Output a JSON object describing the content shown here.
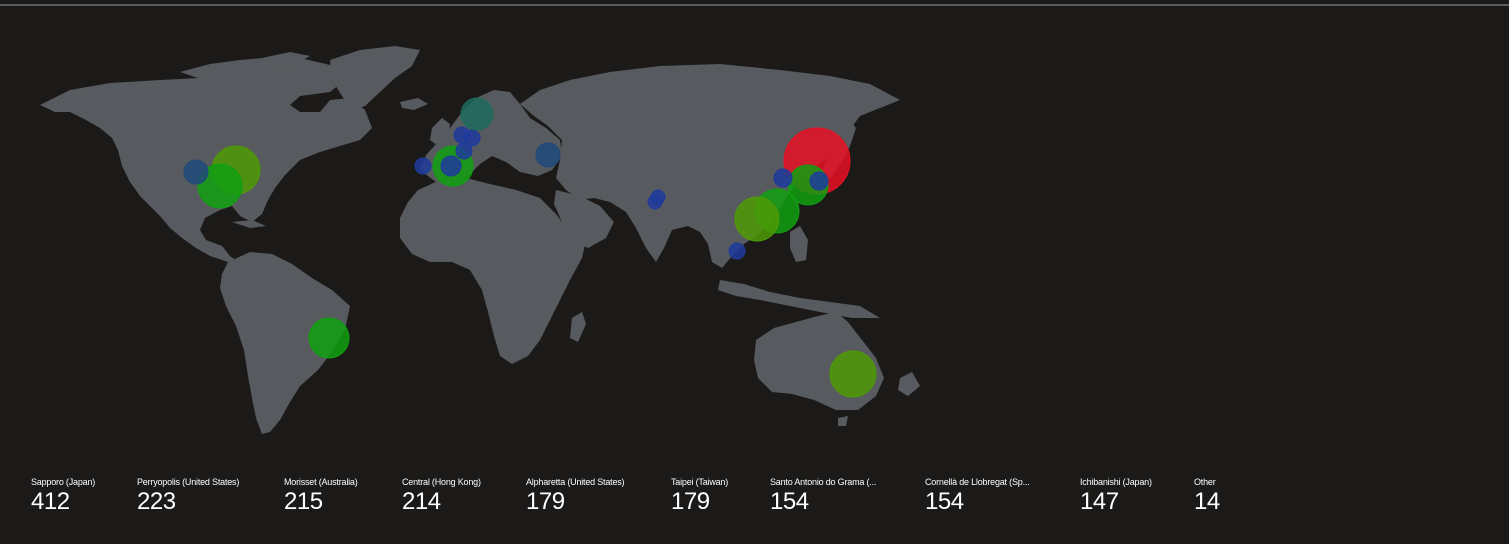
{
  "map": {
    "markers": [
      {
        "id": "sapporo",
        "color": "#e81123",
        "level": "highest"
      },
      {
        "id": "japan-honshu",
        "color": "#10a010",
        "level": "medium"
      },
      {
        "id": "tokyo-area",
        "color": "#1f3b9c",
        "level": "low"
      },
      {
        "id": "taiwan",
        "color": "#10a010",
        "level": "medium"
      },
      {
        "id": "hong-kong",
        "color": "#4e9a06",
        "level": "medium"
      },
      {
        "id": "korea",
        "color": "#1f3b9c",
        "level": "low"
      },
      {
        "id": "vietnam",
        "color": "#1f3b9c",
        "level": "low"
      },
      {
        "id": "india-1",
        "color": "#1f3b9c",
        "level": "low"
      },
      {
        "id": "india-2",
        "color": "#1f3b9c",
        "level": "low"
      },
      {
        "id": "australia",
        "color": "#4e9a06",
        "level": "medium"
      },
      {
        "id": "us-east-large",
        "color": "#4e9a06",
        "level": "medium"
      },
      {
        "id": "us-southeast",
        "color": "#10a010",
        "level": "medium"
      },
      {
        "id": "us-central",
        "color": "#1e4a7a",
        "level": "low"
      },
      {
        "id": "brazil",
        "color": "#10a010",
        "level": "medium"
      },
      {
        "id": "spain",
        "color": "#10a010",
        "level": "medium"
      },
      {
        "id": "portugal",
        "color": "#1f3b9c",
        "level": "low"
      },
      {
        "id": "spain-inner",
        "color": "#1f3b9c",
        "level": "low"
      },
      {
        "id": "france",
        "color": "#1f3b9c",
        "level": "low"
      },
      {
        "id": "belgium",
        "color": "#1f3b9c",
        "level": "low"
      },
      {
        "id": "netherlands",
        "color": "#1f3b9c",
        "level": "low"
      },
      {
        "id": "scandinavia",
        "color": "#1e6b5e",
        "level": "low"
      },
      {
        "id": "ukraine",
        "color": "#1e4a7a",
        "level": "low"
      }
    ]
  },
  "legend": {
    "items": [
      {
        "label": "Sapporo (Japan)",
        "value": "412"
      },
      {
        "label": "Perryopolis (United States)",
        "value": "223"
      },
      {
        "label": "Morisset (Australia)",
        "value": "215"
      },
      {
        "label": "Central (Hong Kong)",
        "value": "214"
      },
      {
        "label": "Alpharetta (United States)",
        "value": "179"
      },
      {
        "label": "Taipei (Taiwan)",
        "value": "179"
      },
      {
        "label": "Santo Antonio do Grama (...",
        "value": "154"
      },
      {
        "label": "Cornellà de Llobregat (Sp...",
        "value": "154"
      },
      {
        "label": "Ichibanishi (Japan)",
        "value": "147"
      },
      {
        "label": "Other",
        "value": "14"
      }
    ]
  }
}
